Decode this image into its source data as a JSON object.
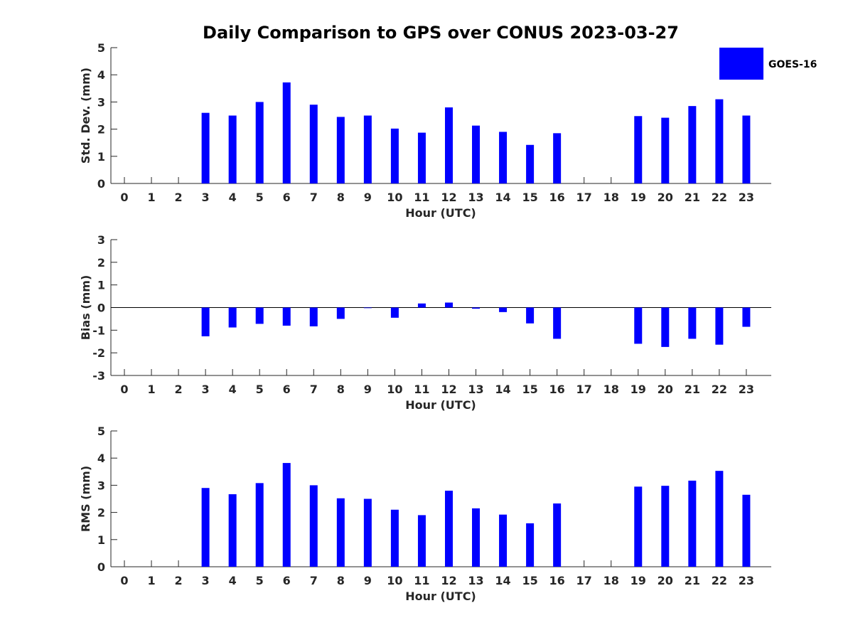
{
  "chart_data": {
    "type": "bar",
    "title": "Daily Comparison to GPS over CONUS 2023-03-27",
    "legend": {
      "label": "GOES-16",
      "placement": "top-right"
    },
    "color": "#0000ff",
    "hours": [
      0,
      1,
      2,
      3,
      4,
      5,
      6,
      7,
      8,
      9,
      10,
      11,
      12,
      13,
      14,
      15,
      16,
      17,
      18,
      19,
      20,
      21,
      22,
      23
    ],
    "panels": [
      {
        "ylabel": "Std. Dev. (mm)",
        "xlabel": "Hour (UTC)",
        "ylim": [
          0,
          5
        ],
        "yticks": [
          0,
          1,
          2,
          3,
          4,
          5
        ],
        "values": [
          null,
          null,
          null,
          2.6,
          2.5,
          3.0,
          3.72,
          2.9,
          2.45,
          2.5,
          2.02,
          1.87,
          2.8,
          2.13,
          1.9,
          1.42,
          1.85,
          null,
          null,
          2.48,
          2.42,
          2.85,
          3.1,
          2.5
        ]
      },
      {
        "ylabel": "Bias (mm)",
        "xlabel": "Hour (UTC)",
        "ylim": [
          -3,
          3
        ],
        "yticks": [
          -3,
          -2,
          -1,
          0,
          1,
          2,
          3
        ],
        "values": [
          null,
          null,
          null,
          -1.27,
          -0.88,
          -0.72,
          -0.8,
          -0.83,
          -0.5,
          -0.02,
          -0.45,
          0.18,
          0.22,
          -0.05,
          -0.2,
          -0.7,
          -1.38,
          null,
          null,
          -1.6,
          -1.74,
          -1.38,
          -1.64,
          -0.85
        ]
      },
      {
        "ylabel": "RMS (mm)",
        "xlabel": "Hour (UTC)",
        "ylim": [
          0,
          5
        ],
        "yticks": [
          0,
          1,
          2,
          3,
          4,
          5
        ],
        "values": [
          null,
          null,
          null,
          2.9,
          2.67,
          3.08,
          3.82,
          3.0,
          2.52,
          2.5,
          2.1,
          1.9,
          2.8,
          2.15,
          1.92,
          1.6,
          2.33,
          null,
          null,
          2.95,
          2.98,
          3.17,
          3.53,
          2.65
        ]
      }
    ]
  }
}
